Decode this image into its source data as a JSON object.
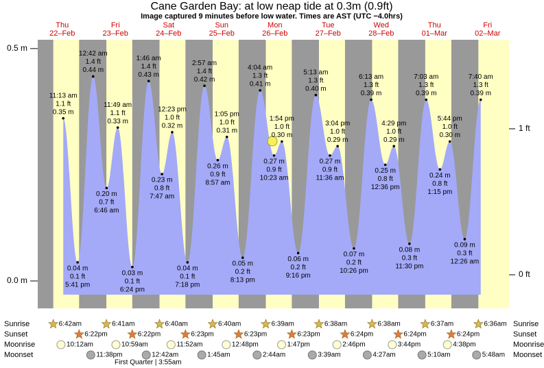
{
  "chart_data": {
    "type": "tide",
    "title": "Cane Garden Bay: at low  neap tide at 0.3m (0.9ft)",
    "subtitle": "Image captured 9 minutes before low water. Times are AST (UTC −4.0hrs)",
    "days": [
      {
        "name": "Thu",
        "date": "22–Feb"
      },
      {
        "name": "Fri",
        "date": "23–Feb"
      },
      {
        "name": "Sat",
        "date": "24–Feb"
      },
      {
        "name": "Sun",
        "date": "25–Feb"
      },
      {
        "name": "Mon",
        "date": "26–Feb"
      },
      {
        "name": "Tue",
        "date": "27–Feb"
      },
      {
        "name": "Wed",
        "date": "28–Feb"
      },
      {
        "name": "Thu",
        "date": "01–Mar"
      },
      {
        "name": "Fri",
        "date": "02–Mar"
      }
    ],
    "times": [
      "11:13 am",
      "5:41 pm",
      "12:42 am",
      "6:46 am",
      "11:49 am",
      "6:24 pm",
      "1:46 am",
      "7:47 am",
      "12:23 pm",
      "7:18 pm",
      "2:57 am",
      "8:57 am",
      "1:05 pm",
      "8:13 pm",
      "4:04 am",
      "10:23 am",
      "1:54 pm",
      "9:16 pm",
      "5:13 am",
      "11:36 am",
      "3:04 pm",
      "10:26 pm",
      "6:13 am",
      "12:36 pm",
      "4:29 pm",
      "11:30 pm",
      "7:03 am",
      "1:15 pm",
      "5:44 pm",
      "12:26 am",
      "7:40 am"
    ],
    "values": [
      0.35,
      0.04,
      0.44,
      0.2,
      0.33,
      0.03,
      0.43,
      0.23,
      0.32,
      0.04,
      0.42,
      0.26,
      0.31,
      0.05,
      0.41,
      0.27,
      0.3,
      0.06,
      0.4,
      0.27,
      0.29,
      0.07,
      0.39,
      0.25,
      0.29,
      0.08,
      0.39,
      0.24,
      0.3,
      0.09,
      0.39
    ],
    "value_labels": [
      "0.35 m",
      "0.04 m",
      "0.44 m",
      "0.20 m",
      "0.33 m",
      "0.03 m",
      "0.43 m",
      "0.23 m",
      "0.32 m",
      "0.04 m",
      "0.42 m",
      "0.26 m",
      "0.31 m",
      "0.05 m",
      "0.41 m",
      "0.27 m",
      "0.30 m",
      "0.06 m",
      "0.40 m",
      "0.27 m",
      "0.29 m",
      "0.07 m",
      "0.39 m",
      "0.25 m",
      "0.29 m",
      "0.08 m",
      "0.39 m",
      "0.24 m",
      "0.30 m",
      "0.09 m",
      "0.39 m"
    ],
    "feet_labels": [
      "1.1 ft",
      "0.1 ft",
      "1.4 ft",
      "0.7 ft",
      "1.1 ft",
      "0.1 ft",
      "1.4 ft",
      "0.8 ft",
      "1.0 ft",
      "0.1 ft",
      "1.4 ft",
      "0.9 ft",
      "1.0 ft",
      "0.2 ft",
      "1.3 ft",
      "0.9 ft",
      "1.0 ft",
      "0.2 ft",
      "1.3 ft",
      "0.9 ft",
      "1.0 ft",
      "0.2 ft",
      "1.3 ft",
      "0.8 ft",
      "1.0 ft",
      "0.3 ft",
      "1.3 ft",
      "0.8 ft",
      "1.0 ft",
      "0.3 ft",
      "1.3 ft"
    ],
    "color": "#a4aaf8",
    "ylim": [
      -0.059,
      0.519
    ],
    "yticks": [
      {
        "value": 0.5,
        "label": "0.5 m"
      },
      {
        "value": 0,
        "label": "0.0 m"
      }
    ],
    "y2lim": [
      -0.23,
      1.61
    ],
    "y2ticks": [
      {
        "value": 1,
        "label": "1 ft"
      },
      {
        "value": 0,
        "label": "0 ft"
      }
    ],
    "rows": [
      {
        "name": "Sunrise",
        "times": [
          "6:42am",
          "6:41am",
          "6:40am",
          "6:40am",
          "6:39am",
          "6:38am",
          "6:38am",
          "6:37am",
          "6:36am"
        ]
      },
      {
        "name": "Sunset",
        "times": [
          "6:22pm",
          "6:22pm",
          "6:23pm",
          "6:23pm",
          "6:23pm",
          "6:24pm",
          "6:24pm",
          "6:24pm"
        ]
      },
      {
        "name": "Moonrise",
        "times": [
          "10:12am",
          "10:59am",
          "11:52am",
          "12:48pm",
          "1:47pm",
          "2:46pm",
          "3:44pm",
          "4:38pm"
        ]
      },
      {
        "name": "Moonset",
        "times": [
          "11:38pm",
          "12:42am",
          "1:45am",
          "2:44am",
          "3:39am",
          "4:27am",
          "5:10am",
          "5:48am"
        ]
      }
    ],
    "moon_phase": "First Quarter | 3:55am"
  }
}
